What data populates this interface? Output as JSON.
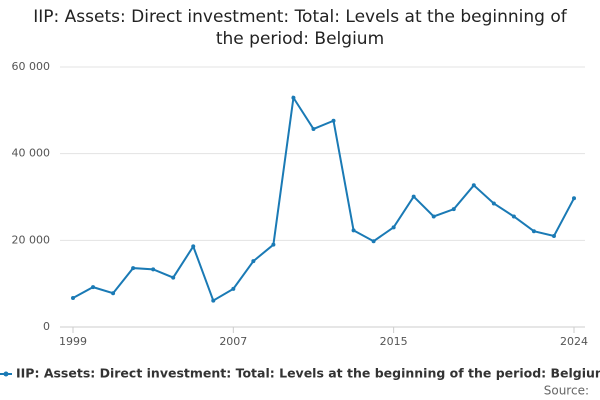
{
  "chart_data": {
    "type": "line",
    "title": "IIP: Assets: Direct investment: Total: Levels at the beginning of the period: Belgium",
    "x": [
      1999,
      2000,
      2001,
      2002,
      2003,
      2004,
      2005,
      2006,
      2007,
      2008,
      2009,
      2010,
      2011,
      2012,
      2013,
      2014,
      2015,
      2016,
      2017,
      2018,
      2019,
      2020,
      2021,
      2022,
      2023,
      2024
    ],
    "series": [
      {
        "name": "IIP: Assets: Direct investment: Total: Levels at the beginning of the period: Belgium",
        "color": "#1a7ab5",
        "values": [
          6700,
          9200,
          7800,
          13600,
          13300,
          11400,
          18600,
          6100,
          8800,
          15200,
          19000,
          52900,
          45700,
          47600,
          22300,
          19800,
          23000,
          30100,
          25500,
          27200,
          32700,
          28500,
          25500,
          22100,
          21000,
          29700
        ]
      }
    ],
    "xlim": [
      1999,
      2024
    ],
    "xticks": [
      1999,
      2007,
      2015,
      2024
    ],
    "ylim": [
      0,
      60000
    ],
    "yticks": [
      0,
      {
        "value": 20000,
        "label": "20 000"
      },
      {
        "value": 40000,
        "label": "40 000"
      },
      {
        "value": 60000,
        "label": "60 000"
      }
    ],
    "grid": true,
    "legend": "bottom",
    "source_label": "Source:"
  }
}
